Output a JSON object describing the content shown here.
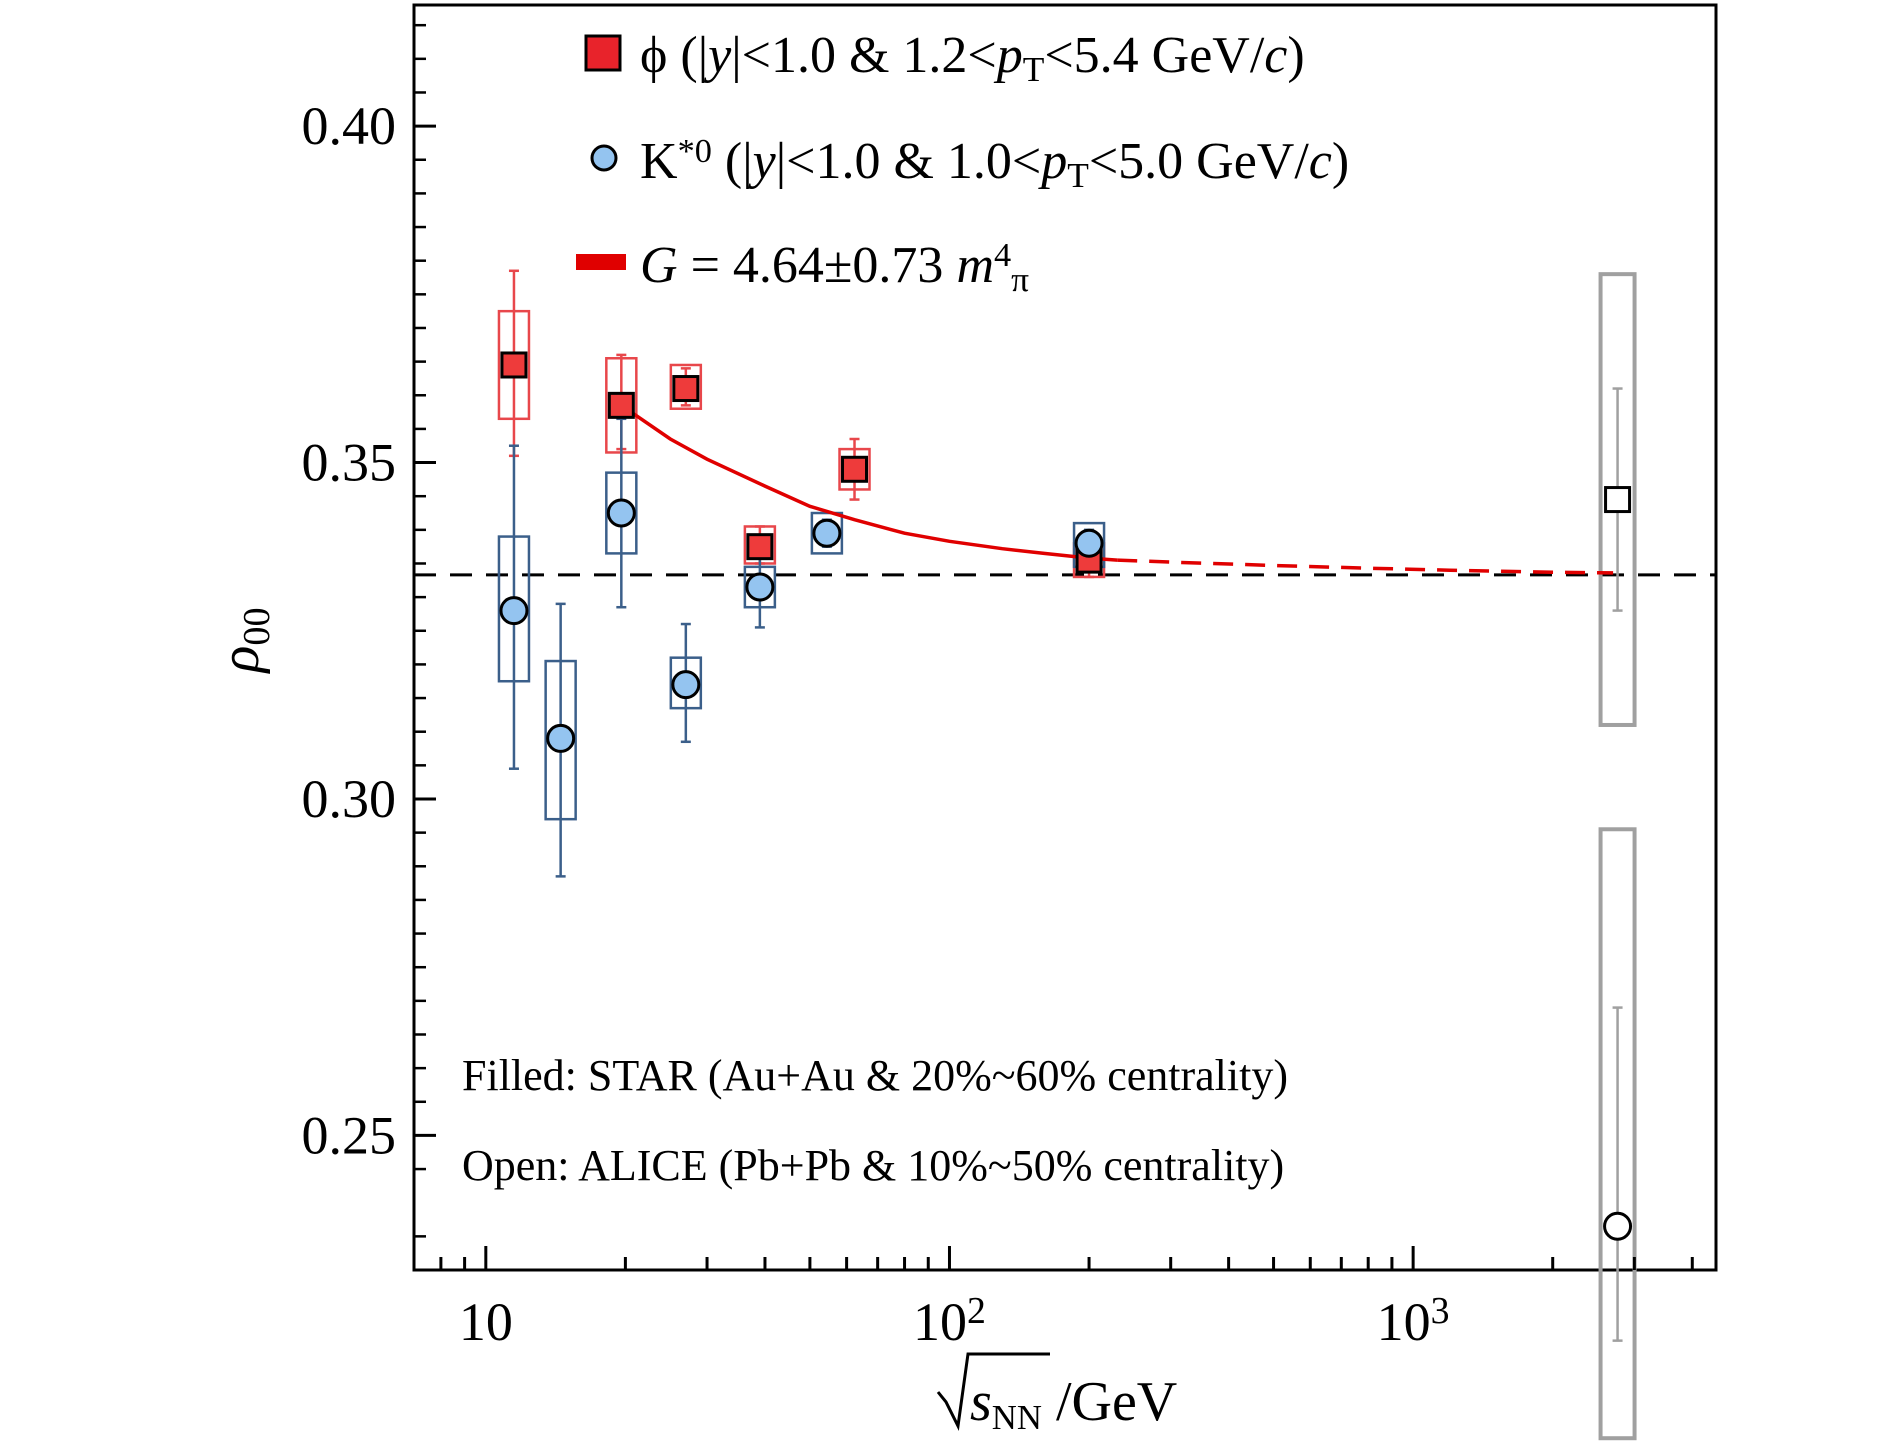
{
  "chart_data": {
    "type": "scatter",
    "x_scale": "log",
    "xlim": [
      7,
      4500
    ],
    "ylim": [
      0.23,
      0.418
    ],
    "xlabel": {
      "root": "s",
      "sub": "NN",
      "unit": " /GeV"
    },
    "ylabel": {
      "main": "ρ",
      "sub": "00"
    },
    "x_ticks": [
      {
        "value": 10,
        "base": "10",
        "exp": ""
      },
      {
        "value": 100,
        "base": "10",
        "exp": "2"
      },
      {
        "value": 1000,
        "base": "10",
        "exp": "3"
      }
    ],
    "y_ticks": [
      {
        "value": 0.25,
        "label": "0.25"
      },
      {
        "value": 0.3,
        "label": "0.30"
      },
      {
        "value": 0.35,
        "label": "0.35"
      },
      {
        "value": 0.4,
        "label": "0.40"
      }
    ],
    "reference_line": {
      "y": 0.3333,
      "style": "dashed",
      "color": "#000000"
    },
    "legend": [
      {
        "marker": "square",
        "color": "#e8232b",
        "parts": [
          {
            "t": "ϕ (|"
          },
          {
            "t": "y",
            "i": true
          },
          {
            "t": "|<1.0 & 1.2<"
          },
          {
            "t": "p",
            "i": true
          },
          {
            "t": "T",
            "sub": true
          },
          {
            "t": "<5.4 GeV/"
          },
          {
            "t": "c",
            "i": true
          },
          {
            "t": ")"
          }
        ]
      },
      {
        "marker": "circle",
        "color": "#94c4f0",
        "parts": [
          {
            "t": "K"
          },
          {
            "t": "*0",
            "sup": true
          },
          {
            "t": " (|"
          },
          {
            "t": "y",
            "i": true
          },
          {
            "t": "|<1.0 & 1.0<"
          },
          {
            "t": "p",
            "i": true
          },
          {
            "t": "T",
            "sub": true
          },
          {
            "t": "<5.0 GeV/"
          },
          {
            "t": "c",
            "i": true
          },
          {
            "t": ")"
          }
        ]
      },
      {
        "marker": "line",
        "color": "#e00000",
        "parts": [
          {
            "t": "G",
            "i": true
          },
          {
            "t": " = 4.64±0.73 "
          },
          {
            "t": "m",
            "i": true
          },
          {
            "t": "4",
            "sup": true
          },
          {
            "t": "π",
            "sub": true
          }
        ]
      }
    ],
    "notes": [
      "Filled: STAR (Au+Au & 20%~60% centrality)",
      "Open: ALICE (Pb+Pb & 10%~50% centrality)"
    ],
    "series": [
      {
        "name": "ϕ",
        "experiment": "STAR",
        "marker": "square",
        "filled": true,
        "color": "#ee3b3b",
        "edge": "#000000",
        "box_color": "#e8474b",
        "points": [
          {
            "x": 11.5,
            "y": 0.3645,
            "stat": [
              0.351,
              0.3785
            ],
            "sys": [
              0.3565,
              0.3725
            ]
          },
          {
            "x": 19.6,
            "y": 0.3585,
            "stat": [
              0.352,
              0.366
            ],
            "sys": [
              0.3515,
              0.3655
            ]
          },
          {
            "x": 27,
            "y": 0.361,
            "stat": [
              0.3585,
              0.364
            ],
            "sys": [
              0.358,
              0.3645
            ]
          },
          {
            "x": 39,
            "y": 0.3375,
            "stat": [
              0.335,
              0.3405
            ],
            "sys": [
              0.335,
              0.3405
            ]
          },
          {
            "x": 62.4,
            "y": 0.349,
            "stat": [
              0.3445,
              0.3535
            ],
            "sys": [
              0.346,
              0.352
            ]
          },
          {
            "x": 200,
            "y": 0.3355,
            "stat": [
              0.333,
              0.338
            ],
            "sys": [
              0.333,
              0.338
            ]
          }
        ]
      },
      {
        "name": "K*0",
        "experiment": "STAR",
        "marker": "circle",
        "filled": true,
        "color": "#94c4f0",
        "edge": "#000000",
        "box_color": "#3b5f8a",
        "points": [
          {
            "x": 11.5,
            "y": 0.328,
            "stat": [
              0.3045,
              0.3525
            ],
            "sys": [
              0.3175,
              0.339
            ]
          },
          {
            "x": 14.5,
            "y": 0.309,
            "stat": [
              0.2885,
              0.329
            ],
            "sys": [
              0.297,
              0.3205
            ]
          },
          {
            "x": 19.6,
            "y": 0.3425,
            "stat": [
              0.3285,
              0.3565
            ],
            "sys": [
              0.3365,
              0.3485
            ]
          },
          {
            "x": 27,
            "y": 0.317,
            "stat": [
              0.3085,
              0.326
            ],
            "sys": [
              0.3135,
              0.321
            ]
          },
          {
            "x": 39,
            "y": 0.3315,
            "stat": [
              0.3255,
              0.3375
            ],
            "sys": [
              0.3285,
              0.3345
            ]
          },
          {
            "x": 54.4,
            "y": 0.3395,
            "stat": [
              0.3375,
              0.3415
            ],
            "sys": [
              0.3365,
              0.3425
            ]
          },
          {
            "x": 200,
            "y": 0.338,
            "stat": [
              0.336,
              0.34
            ],
            "sys": [
              0.3345,
              0.341
            ]
          }
        ]
      },
      {
        "name": "ϕ",
        "experiment": "ALICE",
        "marker": "square",
        "filled": false,
        "color": "#ffffff",
        "edge": "#000000",
        "box_color": "#a0a0a0",
        "points": [
          {
            "x": 2760,
            "y": 0.3445,
            "stat": [
              0.328,
              0.361
            ],
            "sys": [
              0.311,
              0.378
            ]
          }
        ]
      },
      {
        "name": "K*0",
        "experiment": "ALICE",
        "marker": "circle",
        "filled": false,
        "color": "#ffffff",
        "edge": "#000000",
        "box_color": "#a0a0a0",
        "points": [
          {
            "x": 2760,
            "y": 0.2365,
            "stat": [
              0.2195,
              0.269
            ],
            "sys": [
              0.205,
              0.2955
            ]
          }
        ]
      }
    ],
    "fit_curve": {
      "name": "G = 4.64±0.73 m_π^4",
      "color": "#e00000",
      "solid": [
        {
          "x": 19.6,
          "y": 0.3585
        },
        {
          "x": 25,
          "y": 0.3535
        },
        {
          "x": 30,
          "y": 0.3505
        },
        {
          "x": 40,
          "y": 0.3465
        },
        {
          "x": 50,
          "y": 0.3435
        },
        {
          "x": 62.4,
          "y": 0.3415
        },
        {
          "x": 80,
          "y": 0.3395
        },
        {
          "x": 100,
          "y": 0.3383
        },
        {
          "x": 130,
          "y": 0.3372
        },
        {
          "x": 160,
          "y": 0.3365
        },
        {
          "x": 200,
          "y": 0.3358
        },
        {
          "x": 230,
          "y": 0.3355
        }
      ],
      "dashed": [
        {
          "x": 230,
          "y": 0.3355
        },
        {
          "x": 300,
          "y": 0.3352
        },
        {
          "x": 500,
          "y": 0.3347
        },
        {
          "x": 800,
          "y": 0.3343
        },
        {
          "x": 1200,
          "y": 0.334
        },
        {
          "x": 2000,
          "y": 0.3337
        },
        {
          "x": 2700,
          "y": 0.3336
        }
      ]
    }
  }
}
